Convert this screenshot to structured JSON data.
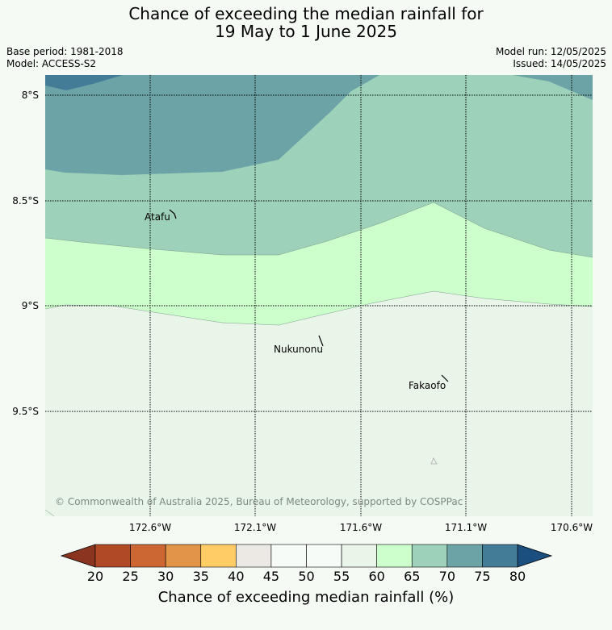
{
  "title_line1": "Chance of exceeding the median rainfall for",
  "title_line2": "19 May to 1 June 2025",
  "base_period": "Base period: 1981-2018",
  "model": "Model: ACCESS-S2",
  "model_run": "Model run: 12/05/2025",
  "issued": "Issued: 14/05/2025",
  "lat_labels": [
    "8°S",
    "8.5°S",
    "9°S",
    "9.5°S"
  ],
  "lon_labels": [
    "172.6°W",
    "172.1°W",
    "171.6°W",
    "171.1°W",
    "170.6°W"
  ],
  "places": {
    "atafu": "Atafu",
    "nukunonu": "Nukunonu",
    "fakaofo": "Fakaofo"
  },
  "copyright": "© Commonwealth of Australia 2025, Bureau of Meteorology, supported by COSPPac",
  "colorbar": {
    "title": "Chance of exceeding median rainfall (%)",
    "ticks": [
      "20",
      "25",
      "30",
      "35",
      "40",
      "45",
      "50",
      "55",
      "60",
      "65",
      "70",
      "75",
      "80"
    ],
    "under_color": "#8b3520",
    "over_color": "#1a4f80",
    "colors": [
      "#b04a26",
      "#cc6633",
      "#e29548",
      "#ffcc66",
      "#ece9e4",
      "#f7fbf7",
      "#f7fbf7",
      "#eaf5ea",
      "#ccffcc",
      "#9dd1b9",
      "#6ca3a6",
      "#427c97"
    ]
  }
}
